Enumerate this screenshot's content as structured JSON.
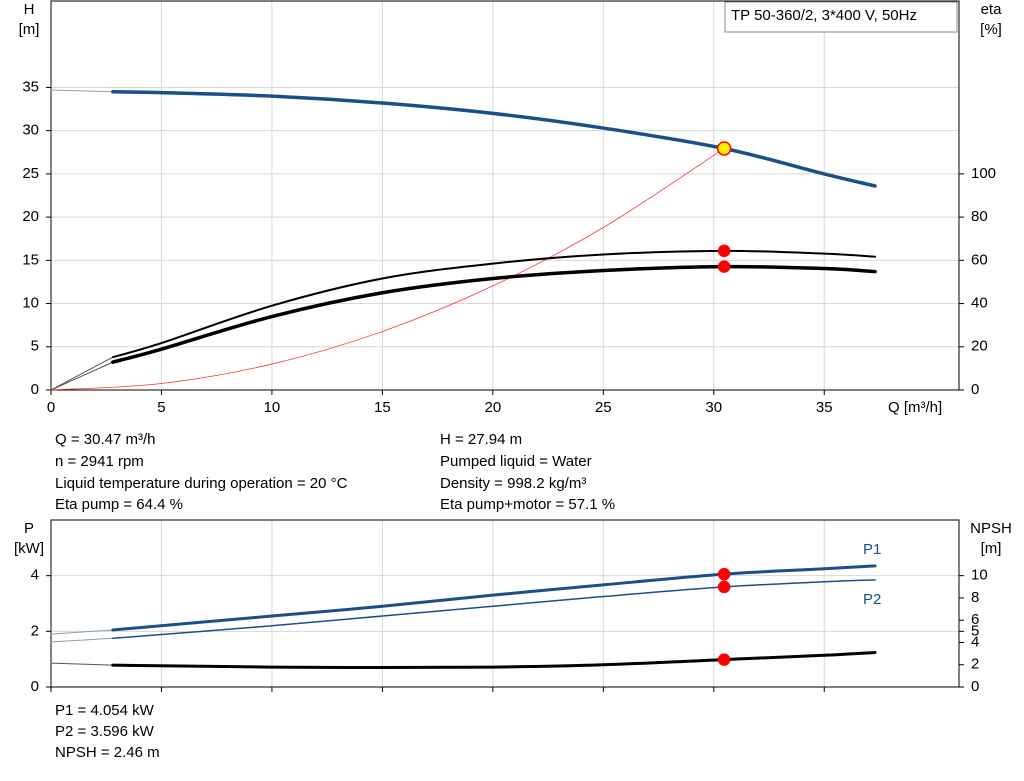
{
  "title_box": "TP 50-360/2, 3*400 V, 50Hz",
  "info_top": [
    [
      "Q = 30.47 m³/h",
      "n = 2941 rpm",
      "Liquid temperature during operation = 20 °C",
      "Eta pump = 64.4 %"
    ],
    [
      "H = 27.94 m",
      "Pumped liquid = Water",
      "Density = 998.2 kg/m³",
      "Eta pump+motor = 57.1 %"
    ]
  ],
  "info_bottom": [
    "P1 = 4.054 kW",
    "P2 = 3.596 kW",
    "NPSH = 2.46 m"
  ],
  "chart_data": [
    {
      "type": "line",
      "ylabel": [
        "H",
        "[m]"
      ],
      "y2label": [
        "eta",
        "[%]"
      ],
      "xlabel": "Q [m³/h]",
      "xlim": [
        0,
        41.1
      ],
      "xticks": [
        0,
        5,
        10,
        15,
        20,
        25,
        30,
        35
      ],
      "ylim": [
        0,
        45
      ],
      "yticks": [
        0,
        5,
        10,
        15,
        20,
        25,
        30,
        35
      ],
      "y2lim": [
        0,
        180
      ],
      "y2ticks": [
        0,
        20,
        40,
        60,
        80,
        100
      ],
      "grid": true,
      "series": [
        {
          "axis": "y",
          "color": "#8aa0b8",
          "width": 1,
          "x": [
            0,
            2.8
          ],
          "values": [
            34.7,
            34.5
          ]
        },
        {
          "axis": "y",
          "color": "#1a4f8a",
          "width": 3.5,
          "x": [
            2.8,
            5,
            10,
            15,
            20,
            25,
            30.47,
            35,
            37.3
          ],
          "values": [
            34.5,
            34.4,
            34.0,
            33.2,
            32.0,
            30.3,
            27.94,
            25.0,
            23.6
          ]
        },
        {
          "axis": "y",
          "color": "#ff3333",
          "width": 0.8,
          "x": [
            0,
            5,
            10,
            15,
            20,
            25,
            30.47
          ],
          "values": [
            0,
            0.75,
            3.0,
            6.77,
            12.04,
            18.8,
            27.94
          ]
        },
        {
          "axis": "y2",
          "color": "#555555",
          "width": 1,
          "x": [
            0,
            2.8
          ],
          "values": [
            0,
            15.2
          ]
        },
        {
          "axis": "y2",
          "color": "#000000",
          "width": 2,
          "x": [
            2.8,
            5,
            10,
            15,
            20,
            25,
            30.47,
            35,
            37.3
          ],
          "values": [
            15.2,
            21.7,
            39,
            51.6,
            58.5,
            62.7,
            64.4,
            63.1,
            61.7
          ]
        },
        {
          "axis": "y2",
          "color": "#555555",
          "width": 1,
          "x": [
            0,
            2.8
          ],
          "values": [
            0,
            12.9
          ]
        },
        {
          "axis": "y2",
          "color": "#000000",
          "width": 3.5,
          "x": [
            2.8,
            5,
            10,
            15,
            20,
            25,
            30.47,
            35,
            37.3
          ],
          "values": [
            12.9,
            18.9,
            34,
            45,
            51.6,
            55.3,
            57.1,
            56.2,
            54.8
          ]
        }
      ],
      "points": [
        {
          "axis": "y",
          "x": 30.47,
          "value": 27.94,
          "color": "#ffee00"
        },
        {
          "axis": "y2",
          "x": 30.47,
          "value": 64.4,
          "color": "#ff0000"
        },
        {
          "axis": "y2",
          "x": 30.47,
          "value": 57.1,
          "color": "#ff0000"
        }
      ]
    },
    {
      "type": "line",
      "ylabel": [
        "P",
        "[kW]"
      ],
      "y2label": [
        "NPSH",
        "[m]"
      ],
      "xlim": [
        0,
        41.1
      ],
      "ylim": [
        0,
        6
      ],
      "yticks": [
        0,
        2,
        4
      ],
      "y2lim": [
        0,
        15
      ],
      "y2ticks": [
        0,
        2,
        4,
        5,
        6,
        8,
        10
      ],
      "grid": true,
      "series": [
        {
          "axis": "y",
          "color": "#8aa0b8",
          "width": 1,
          "x": [
            0,
            2.8
          ],
          "values": [
            1.9,
            2.05
          ]
        },
        {
          "name": "P1",
          "axis": "y",
          "color": "#1a4f8a",
          "width": 3,
          "x": [
            2.8,
            10,
            15,
            20,
            25,
            30.47,
            35,
            37.3
          ],
          "values": [
            2.05,
            2.55,
            2.9,
            3.3,
            3.67,
            4.054,
            4.25,
            4.35
          ]
        },
        {
          "axis": "y",
          "color": "#8aa0b8",
          "width": 1,
          "x": [
            0,
            2.8
          ],
          "values": [
            1.62,
            1.75
          ]
        },
        {
          "name": "P2",
          "axis": "y",
          "color": "#1a4f8a",
          "width": 1.5,
          "x": [
            2.8,
            10,
            15,
            20,
            25,
            30.47,
            35,
            37.3
          ],
          "values": [
            1.75,
            2.2,
            2.55,
            2.9,
            3.25,
            3.596,
            3.78,
            3.85
          ]
        },
        {
          "axis": "y2",
          "color": "#555555",
          "width": 1,
          "x": [
            0,
            2.8
          ],
          "values": [
            2.14,
            1.96
          ]
        },
        {
          "axis": "y2",
          "color": "#000000",
          "width": 3,
          "x": [
            2.8,
            10,
            15,
            20,
            25,
            30.47,
            35,
            37.3
          ],
          "values": [
            1.96,
            1.79,
            1.75,
            1.79,
            2.0,
            2.46,
            2.85,
            3.1
          ]
        }
      ],
      "points": [
        {
          "axis": "y",
          "x": 30.47,
          "value": 4.054,
          "color": "#ff0000"
        },
        {
          "axis": "y",
          "x": 30.47,
          "value": 3.596,
          "color": "#ff0000"
        },
        {
          "axis": "y2",
          "x": 30.47,
          "value": 2.46,
          "color": "#ff0000"
        }
      ]
    }
  ]
}
